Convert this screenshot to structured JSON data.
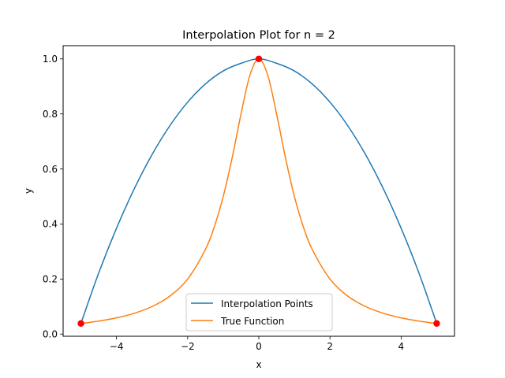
{
  "chart_data": {
    "type": "line",
    "title": "Interpolation Plot for n = 2",
    "xlabel": "x",
    "ylabel": "y",
    "xlim": [
      -5.5,
      5.5
    ],
    "ylim": [
      -0.008,
      1.048
    ],
    "x_ticks": [
      -4,
      -2,
      0,
      2,
      4
    ],
    "x_tick_labels": [
      "−4",
      "−2",
      "0",
      "2",
      "4"
    ],
    "y_ticks": [
      0.0,
      0.2,
      0.4,
      0.6,
      0.8,
      1.0
    ],
    "y_tick_labels": [
      "0.0",
      "0.2",
      "0.4",
      "0.6",
      "0.8",
      "1.0"
    ],
    "grid": false,
    "legend_position": "lower center",
    "series": [
      {
        "name": "Interpolation Points",
        "color": "#1f77b4",
        "x": [
          -5,
          -4.5,
          -4,
          -3.5,
          -3,
          -2.5,
          -2,
          -1.5,
          -1,
          -0.5,
          0,
          0.5,
          1,
          1.5,
          2,
          2.5,
          3,
          3.5,
          4,
          4.5,
          5
        ],
        "y": [
          0.0385,
          0.2219,
          0.3846,
          0.5281,
          0.6523,
          0.7572,
          0.8428,
          0.909,
          0.9562,
          0.984,
          1.0,
          0.984,
          0.9562,
          0.909,
          0.8428,
          0.7572,
          0.6523,
          0.5281,
          0.3846,
          0.2219,
          0.0385
        ]
      },
      {
        "name": "True Function",
        "color": "#ff7f0e",
        "x": [
          -5,
          -4.5,
          -4,
          -3.5,
          -3,
          -2.5,
          -2,
          -1.5,
          -1.25,
          -1,
          -0.75,
          -0.5,
          -0.25,
          0,
          0.25,
          0.5,
          0.75,
          1,
          1.25,
          1.5,
          2,
          2.5,
          3,
          3.5,
          4,
          4.5,
          5
        ],
        "y": [
          0.0385,
          0.0471,
          0.0588,
          0.0755,
          0.1,
          0.1379,
          0.2,
          0.3077,
          0.3902,
          0.5,
          0.64,
          0.8,
          0.9412,
          1.0,
          0.9412,
          0.8,
          0.64,
          0.5,
          0.3902,
          0.3077,
          0.2,
          0.1379,
          0.1,
          0.0755,
          0.0588,
          0.0471,
          0.0385
        ]
      }
    ],
    "markers": {
      "color": "#ff0000",
      "x": [
        -5,
        0,
        5
      ],
      "y": [
        0.0385,
        1.0,
        0.0385
      ]
    }
  }
}
